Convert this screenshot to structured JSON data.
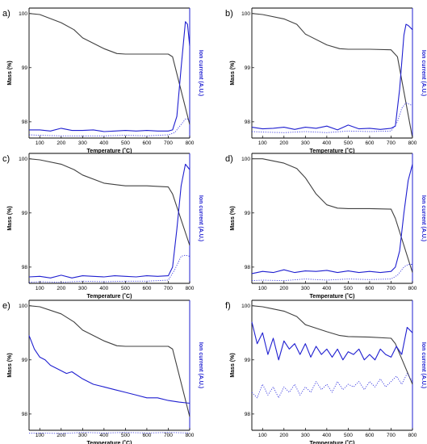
{
  "figure": {
    "common": {
      "xlabel": "Temperature (˚C)",
      "ylabel_left": "Mass (%)",
      "ylabel_right": "Ion current (A.U.)",
      "x_ticks": [
        100,
        200,
        300,
        400,
        500,
        600,
        700,
        800
      ],
      "y_ticks": [
        98,
        99,
        100
      ],
      "xlim": [
        50,
        800
      ],
      "ylim": [
        97.7,
        100.1
      ],
      "colors": {
        "mass": "#404040",
        "ion_solid": "#1f1fd0",
        "ion_dotted": "#3a3ae0",
        "axis": "#000000",
        "right_axis": "#1f1fd0"
      }
    }
  },
  "chart_data": [
    {
      "type": "line",
      "panel": "a)",
      "series": [
        {
          "key": "mass",
          "x": [
            50,
            100,
            200,
            260,
            300,
            400,
            460,
            500,
            600,
            700,
            720,
            800
          ],
          "values": [
            100.0,
            99.98,
            99.83,
            99.7,
            99.55,
            99.35,
            99.26,
            99.25,
            99.25,
            99.25,
            99.2,
            97.95
          ]
        },
        {
          "key": "ion_solid",
          "x": [
            50,
            100,
            150,
            200,
            250,
            300,
            350,
            400,
            450,
            500,
            550,
            600,
            650,
            700,
            720,
            740,
            760,
            780,
            790,
            800
          ],
          "values": [
            97.85,
            97.85,
            97.83,
            97.88,
            97.84,
            97.84,
            97.85,
            97.82,
            97.83,
            97.84,
            97.83,
            97.84,
            97.83,
            97.83,
            97.85,
            98.1,
            99.0,
            99.85,
            99.8,
            99.4
          ]
        },
        {
          "key": "ion_dotted",
          "x": [
            50,
            100,
            200,
            300,
            400,
            500,
            600,
            700,
            730,
            760,
            780,
            800
          ],
          "values": [
            97.76,
            97.75,
            97.74,
            97.74,
            97.74,
            97.75,
            97.74,
            97.76,
            97.8,
            97.95,
            98.05,
            98.05
          ]
        }
      ]
    },
    {
      "type": "line",
      "panel": "b)",
      "series": [
        {
          "key": "mass",
          "x": [
            50,
            100,
            200,
            260,
            300,
            400,
            460,
            500,
            600,
            700,
            730,
            800
          ],
          "values": [
            100.0,
            99.98,
            99.9,
            99.8,
            99.62,
            99.42,
            99.35,
            99.34,
            99.34,
            99.33,
            99.2,
            97.7
          ]
        },
        {
          "key": "ion_solid",
          "x": [
            50,
            100,
            150,
            200,
            250,
            300,
            350,
            400,
            450,
            500,
            550,
            600,
            650,
            700,
            720,
            740,
            760,
            770,
            780,
            800
          ],
          "values": [
            97.9,
            97.87,
            97.88,
            97.9,
            97.86,
            97.9,
            97.88,
            97.92,
            97.85,
            97.94,
            97.87,
            97.88,
            97.86,
            97.88,
            97.92,
            98.6,
            99.6,
            99.8,
            99.78,
            99.7
          ]
        },
        {
          "key": "ion_dotted",
          "x": [
            50,
            100,
            200,
            300,
            400,
            500,
            600,
            700,
            730,
            750,
            770,
            800
          ],
          "values": [
            97.82,
            97.81,
            97.8,
            97.82,
            97.8,
            97.83,
            97.82,
            97.83,
            98.0,
            98.25,
            98.35,
            98.3
          ]
        }
      ]
    },
    {
      "type": "line",
      "panel": "c)",
      "series": [
        {
          "key": "mass",
          "x": [
            50,
            100,
            200,
            260,
            300,
            400,
            460,
            500,
            600,
            700,
            720,
            800
          ],
          "values": [
            100.0,
            99.98,
            99.9,
            99.8,
            99.7,
            99.55,
            99.52,
            99.5,
            99.5,
            99.48,
            99.35,
            98.4
          ]
        },
        {
          "key": "ion_solid",
          "x": [
            50,
            100,
            150,
            200,
            250,
            300,
            350,
            400,
            450,
            500,
            550,
            600,
            650,
            700,
            720,
            740,
            760,
            780,
            800
          ],
          "values": [
            97.82,
            97.83,
            97.8,
            97.85,
            97.8,
            97.84,
            97.83,
            97.82,
            97.84,
            97.83,
            97.82,
            97.84,
            97.83,
            97.84,
            98.0,
            98.7,
            99.5,
            99.9,
            99.8
          ]
        },
        {
          "key": "ion_dotted",
          "x": [
            50,
            100,
            200,
            300,
            400,
            500,
            600,
            700,
            730,
            760,
            780,
            800
          ],
          "values": [
            97.72,
            97.73,
            97.72,
            97.74,
            97.73,
            97.74,
            97.74,
            97.76,
            97.95,
            98.2,
            98.22,
            98.2
          ]
        }
      ]
    },
    {
      "type": "line",
      "panel": "d)",
      "series": [
        {
          "key": "mass",
          "x": [
            50,
            100,
            200,
            260,
            300,
            350,
            400,
            450,
            500,
            600,
            700,
            720,
            800
          ],
          "values": [
            100.0,
            100.0,
            99.92,
            99.82,
            99.65,
            99.35,
            99.15,
            99.09,
            99.08,
            99.08,
            99.07,
            98.9,
            97.9
          ]
        },
        {
          "key": "ion_solid",
          "x": [
            50,
            100,
            150,
            200,
            250,
            300,
            350,
            400,
            450,
            500,
            550,
            600,
            650,
            700,
            720,
            740,
            760,
            780,
            800
          ],
          "values": [
            97.88,
            97.92,
            97.9,
            97.95,
            97.9,
            97.93,
            97.92,
            97.94,
            97.9,
            97.93,
            97.9,
            97.92,
            97.9,
            97.92,
            98.0,
            98.3,
            99.0,
            99.6,
            99.9
          ]
        },
        {
          "key": "ion_dotted",
          "x": [
            50,
            100,
            200,
            300,
            400,
            500,
            600,
            700,
            730,
            760,
            780,
            800
          ],
          "values": [
            97.75,
            97.76,
            97.75,
            97.78,
            97.76,
            97.78,
            97.77,
            97.78,
            97.85,
            98.0,
            98.05,
            98.05
          ]
        }
      ]
    },
    {
      "type": "line",
      "panel": "e)",
      "series": [
        {
          "key": "mass",
          "x": [
            50,
            100,
            200,
            260,
            300,
            400,
            460,
            500,
            600,
            700,
            720,
            800
          ],
          "values": [
            100.0,
            99.98,
            99.85,
            99.7,
            99.55,
            99.35,
            99.26,
            99.25,
            99.25,
            99.25,
            99.2,
            97.95
          ]
        },
        {
          "key": "ion_solid",
          "x": [
            50,
            75,
            100,
            125,
            150,
            175,
            200,
            225,
            250,
            300,
            350,
            400,
            450,
            500,
            550,
            600,
            650,
            700,
            750,
            800
          ],
          "values": [
            99.45,
            99.2,
            99.05,
            99.0,
            98.9,
            98.85,
            98.8,
            98.75,
            98.78,
            98.65,
            98.55,
            98.5,
            98.45,
            98.4,
            98.35,
            98.3,
            98.3,
            98.25,
            98.22,
            98.2
          ]
        },
        {
          "key": "ion_dotted",
          "x": [
            50,
            100,
            200,
            300,
            400,
            500,
            600,
            700,
            800
          ],
          "values": [
            97.65,
            97.65,
            97.64,
            97.66,
            97.65,
            97.66,
            97.65,
            97.66,
            97.65
          ]
        }
      ]
    },
    {
      "type": "line",
      "panel": "f)",
      "series": [
        {
          "key": "mass",
          "x": [
            50,
            100,
            200,
            260,
            300,
            400,
            460,
            500,
            600,
            700,
            720,
            800
          ],
          "values": [
            100.0,
            99.98,
            99.9,
            99.8,
            99.65,
            99.52,
            99.45,
            99.43,
            99.42,
            99.4,
            99.3,
            98.55
          ]
        },
        {
          "key": "ion_solid",
          "x": [
            50,
            75,
            100,
            125,
            150,
            175,
            200,
            225,
            250,
            275,
            300,
            325,
            350,
            375,
            400,
            425,
            450,
            475,
            500,
            525,
            550,
            575,
            600,
            625,
            650,
            675,
            700,
            725,
            750,
            775,
            800
          ],
          "values": [
            99.7,
            99.3,
            99.5,
            99.1,
            99.4,
            99.0,
            99.35,
            99.2,
            99.3,
            99.1,
            99.3,
            99.05,
            99.25,
            99.1,
            99.2,
            99.05,
            99.2,
            99.0,
            99.15,
            99.1,
            99.2,
            99.0,
            99.1,
            99.0,
            99.2,
            99.1,
            99.05,
            99.25,
            99.1,
            99.6,
            99.5
          ]
        },
        {
          "key": "ion_dotted",
          "x": [
            50,
            75,
            100,
            125,
            150,
            175,
            200,
            225,
            250,
            275,
            300,
            325,
            350,
            375,
            400,
            425,
            450,
            475,
            500,
            525,
            550,
            575,
            600,
            625,
            650,
            675,
            700,
            725,
            750,
            775,
            800
          ],
          "values": [
            98.4,
            98.3,
            98.55,
            98.35,
            98.5,
            98.3,
            98.5,
            98.4,
            98.55,
            98.35,
            98.5,
            98.4,
            98.6,
            98.45,
            98.55,
            98.4,
            98.6,
            98.45,
            98.55,
            98.5,
            98.6,
            98.45,
            98.6,
            98.5,
            98.65,
            98.5,
            98.6,
            98.7,
            98.55,
            98.75,
            98.6
          ]
        }
      ]
    }
  ]
}
